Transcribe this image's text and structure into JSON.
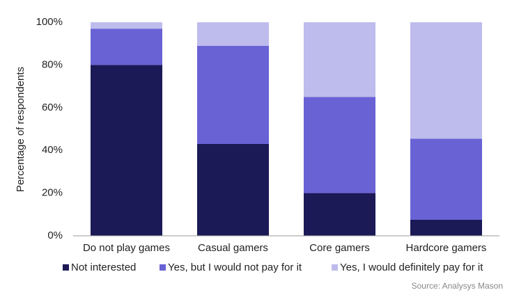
{
  "chart_data": {
    "type": "stacked_bar",
    "y_label": "Percentage of respondents",
    "categories": [
      "Do not play games",
      "Casual gamers",
      "Core gamers",
      "Hardcore gamers"
    ],
    "series": [
      {
        "name": "Not interested",
        "color": "#1b1956",
        "values": [
          80,
          43,
          20,
          7.5
        ]
      },
      {
        "name": "Yes, but I would not pay for it",
        "color": "#6962d5",
        "values": [
          17,
          46,
          45,
          38
        ]
      },
      {
        "name": "Yes, I would definitely pay for it",
        "color": "#bebcec",
        "values": [
          3,
          11,
          35,
          54.5
        ]
      }
    ],
    "ylim": [
      0,
      100
    ],
    "yticks": [
      {
        "value": 0,
        "label": "0%"
      },
      {
        "value": 20,
        "label": "20%"
      },
      {
        "value": 40,
        "label": "40%"
      },
      {
        "value": 60,
        "label": "60%"
      },
      {
        "value": 80,
        "label": "80%"
      },
      {
        "value": 100,
        "label": "100%"
      }
    ],
    "legend": "bottom",
    "source": "Source: Analysys Mason"
  }
}
